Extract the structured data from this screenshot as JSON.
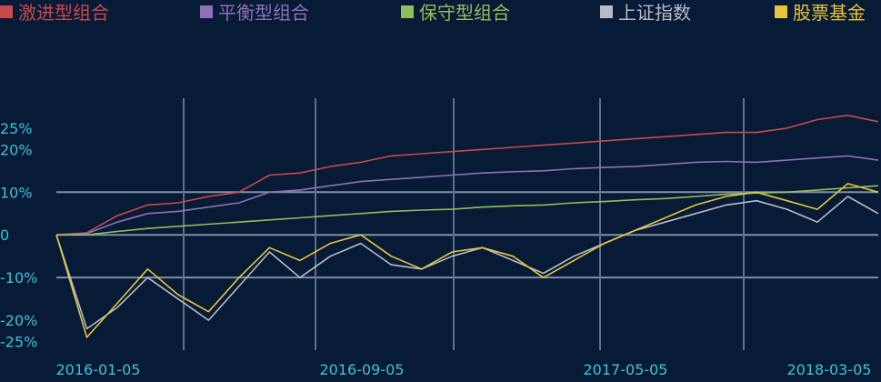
{
  "chart_data": {
    "type": "line",
    "title": "",
    "xlabel": "",
    "ylabel": "",
    "legend_position": "top",
    "grid": true,
    "ylim": [
      -0.27,
      0.32
    ],
    "x_ticks": [
      "2016-01-05",
      "2016-09-05",
      "2017-05-05",
      "2018-03-05"
    ],
    "y_ticks": [
      {
        "value": 0.25,
        "label": "25%"
      },
      {
        "value": 0.2,
        "label": "20%"
      },
      {
        "value": 0.1,
        "label": "10%"
      },
      {
        "value": 0.0,
        "label": "0"
      },
      {
        "value": -0.1,
        "label": "-10%"
      },
      {
        "value": -0.2,
        "label": "-20%"
      },
      {
        "value": -0.25,
        "label": "-25%"
      }
    ],
    "x": [
      "2016-01-05",
      "2016-02-05",
      "2016-03-05",
      "2016-04-05",
      "2016-05-05",
      "2016-06-05",
      "2016-07-05",
      "2016-08-05",
      "2016-09-05",
      "2016-10-05",
      "2016-11-05",
      "2016-12-05",
      "2017-01-05",
      "2017-02-05",
      "2017-03-05",
      "2017-04-05",
      "2017-05-05",
      "2017-06-05",
      "2017-07-05",
      "2017-08-05",
      "2017-09-05",
      "2017-10-05",
      "2017-11-05",
      "2017-12-05",
      "2018-01-05",
      "2018-02-05",
      "2018-03-05",
      "2018-04-05"
    ],
    "series": [
      {
        "name": "激进型组合",
        "color": "#c84a4c",
        "values": [
          0.0,
          0.005,
          0.045,
          0.07,
          0.075,
          0.09,
          0.1,
          0.14,
          0.145,
          0.16,
          0.17,
          0.185,
          0.19,
          0.195,
          0.2,
          0.205,
          0.21,
          0.215,
          0.22,
          0.225,
          0.23,
          0.235,
          0.24,
          0.24,
          0.25,
          0.27,
          0.28,
          0.265
        ]
      },
      {
        "name": "平衡型组合",
        "color": "#8d72b7",
        "values": [
          0.0,
          0.003,
          0.03,
          0.05,
          0.055,
          0.065,
          0.075,
          0.1,
          0.105,
          0.115,
          0.125,
          0.13,
          0.135,
          0.14,
          0.145,
          0.148,
          0.15,
          0.155,
          0.158,
          0.16,
          0.165,
          0.17,
          0.172,
          0.17,
          0.175,
          0.18,
          0.185,
          0.175
        ]
      },
      {
        "name": "保守型组合",
        "color": "#8fbf5c",
        "values": [
          0.0,
          0.0,
          0.008,
          0.015,
          0.02,
          0.025,
          0.03,
          0.035,
          0.04,
          0.045,
          0.05,
          0.055,
          0.058,
          0.06,
          0.065,
          0.068,
          0.07,
          0.075,
          0.078,
          0.082,
          0.085,
          0.09,
          0.095,
          0.098,
          0.1,
          0.105,
          0.11,
          0.115
        ]
      },
      {
        "name": "上证指数",
        "color": "#b7bcc8",
        "values": [
          0.0,
          -0.22,
          -0.17,
          -0.1,
          -0.15,
          -0.2,
          -0.12,
          -0.04,
          -0.1,
          -0.05,
          -0.02,
          -0.07,
          -0.08,
          -0.05,
          -0.03,
          -0.06,
          -0.09,
          -0.05,
          -0.02,
          0.01,
          0.03,
          0.05,
          0.07,
          0.08,
          0.06,
          0.03,
          0.09,
          0.05
        ]
      },
      {
        "name": "股票基金",
        "color": "#e6c53c",
        "values": [
          0.0,
          -0.24,
          -0.16,
          -0.08,
          -0.14,
          -0.18,
          -0.1,
          -0.03,
          -0.06,
          -0.02,
          0.0,
          -0.05,
          -0.08,
          -0.04,
          -0.03,
          -0.05,
          -0.1,
          -0.06,
          -0.02,
          0.01,
          0.04,
          0.07,
          0.09,
          0.1,
          0.08,
          0.06,
          0.12,
          0.1
        ]
      }
    ]
  }
}
